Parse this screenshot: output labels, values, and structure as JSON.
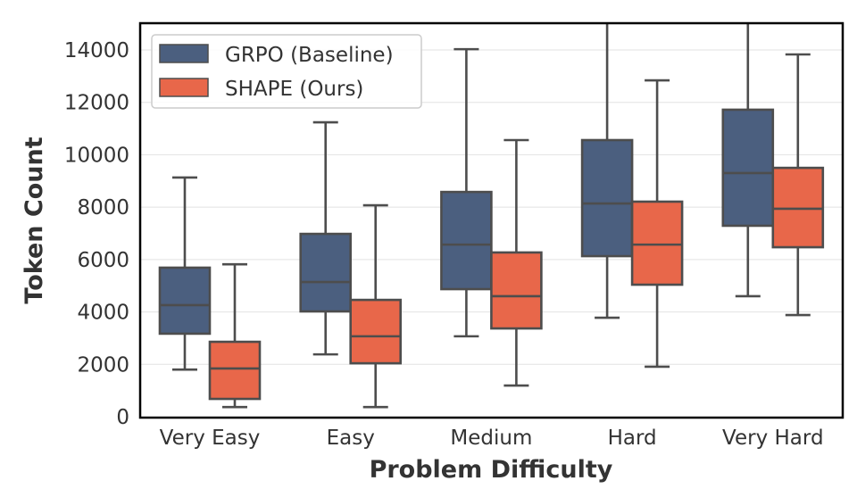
{
  "chart_data": {
    "type": "box",
    "title": "",
    "xlabel": "Problem Difficulty",
    "ylabel": "Token Count",
    "ylim": [
      0,
      15000
    ],
    "yticks": [
      0,
      2000,
      4000,
      6000,
      8000,
      10000,
      12000,
      14000
    ],
    "ytick_labels": [
      "0",
      "2000",
      "4000",
      "6000",
      "8000",
      "10000",
      "12000",
      "14000"
    ],
    "grid": true,
    "legend_position": "top-left",
    "categories": [
      "Very Easy",
      "Easy",
      "Medium",
      "Hard",
      "Very Hard"
    ],
    "series": [
      {
        "name": "GRPO (Baseline)",
        "color": "#4b5f7f",
        "boxes": [
          {
            "whisker_low": 1800,
            "q1": 3170,
            "median": 4260,
            "q3": 5690,
            "whisker_high": 9130
          },
          {
            "whisker_low": 2380,
            "q1": 4020,
            "median": 5140,
            "q3": 6980,
            "whisker_high": 11240
          },
          {
            "whisker_low": 3070,
            "q1": 4870,
            "median": 6570,
            "q3": 8580,
            "whisker_high": 14030
          },
          {
            "whisker_low": 3780,
            "q1": 6130,
            "median": 8140,
            "q3": 10560,
            "whisker_high": 15500
          },
          {
            "whisker_low": 4600,
            "q1": 7290,
            "median": 9300,
            "q3": 11720,
            "whisker_high": 16000
          }
        ]
      },
      {
        "name": "SHAPE (Ours)",
        "color": "#e8674a",
        "boxes": [
          {
            "whisker_low": 370,
            "q1": 680,
            "median": 1840,
            "q3": 2860,
            "whisker_high": 5820
          },
          {
            "whisker_low": 370,
            "q1": 2040,
            "median": 3070,
            "q3": 4460,
            "whisker_high": 8070
          },
          {
            "whisker_low": 1190,
            "q1": 3370,
            "median": 4600,
            "q3": 6270,
            "whisker_high": 10560
          },
          {
            "whisker_low": 1910,
            "q1": 5040,
            "median": 6570,
            "q3": 8210,
            "whisker_high": 12840
          },
          {
            "whisker_low": 3880,
            "q1": 6470,
            "median": 7940,
            "q3": 9500,
            "whisker_high": 13830
          }
        ]
      }
    ]
  }
}
